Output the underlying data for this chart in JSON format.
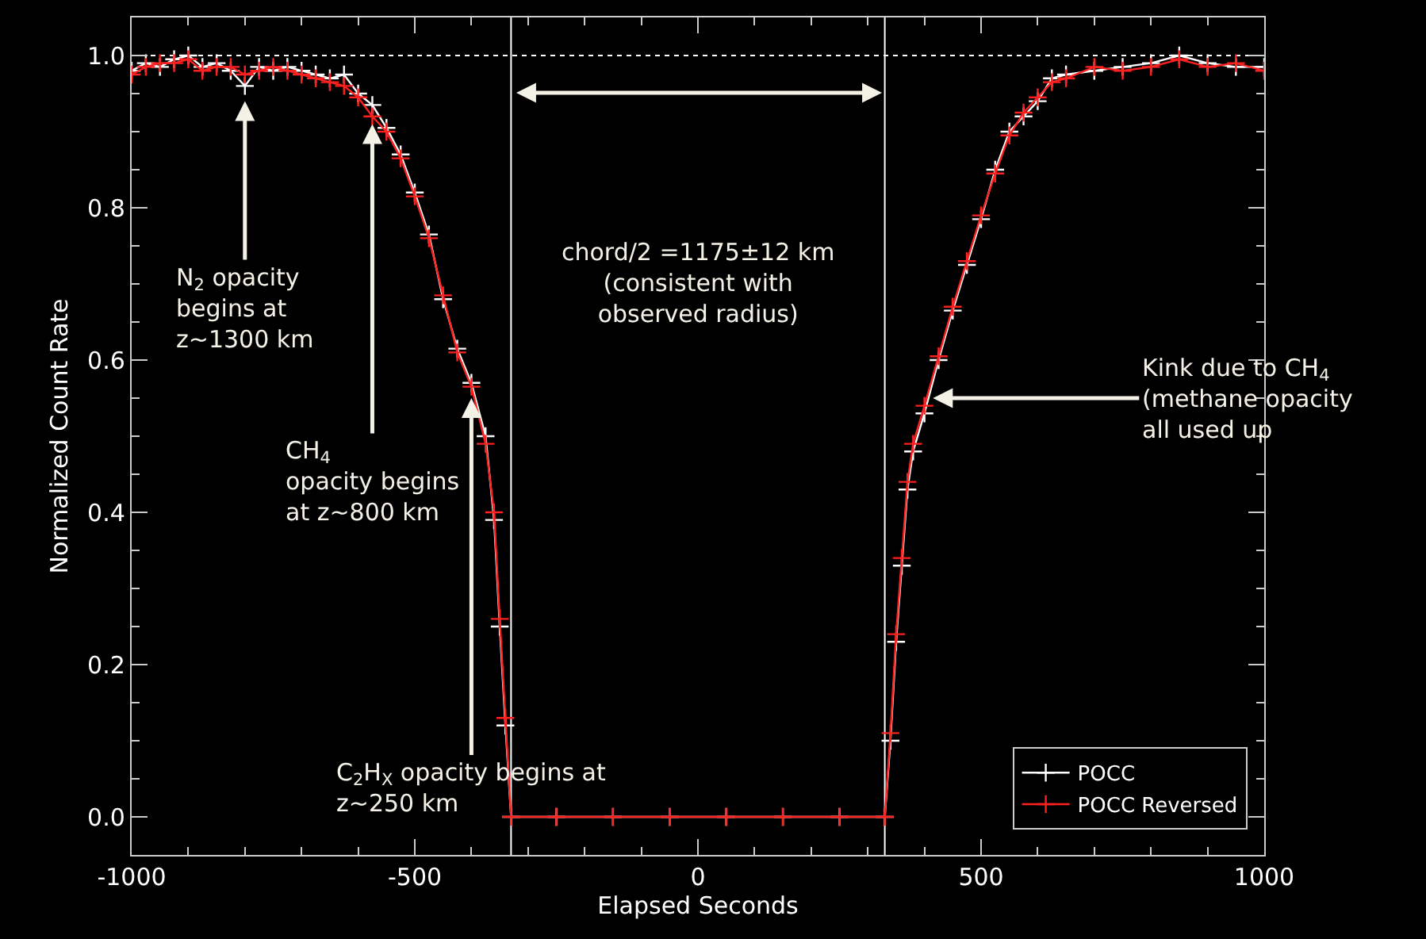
{
  "chart_data": {
    "type": "line",
    "xlabel": "Elapsed Seconds",
    "ylabel": "Normalized Count Rate",
    "x": [
      -1000,
      -975,
      -950,
      -925,
      -900,
      -875,
      -850,
      -825,
      -800,
      -775,
      -750,
      -725,
      -700,
      -675,
      -650,
      -625,
      -600,
      -575,
      -550,
      -525,
      -500,
      -475,
      -450,
      -425,
      -400,
      -375,
      -360,
      -350,
      -340,
      -330,
      -250,
      -150,
      -50,
      50,
      150,
      250,
      330,
      340,
      350,
      360,
      370,
      380,
      400,
      425,
      450,
      475,
      500,
      525,
      550,
      575,
      600,
      625,
      650,
      700,
      750,
      800,
      850,
      900,
      950,
      1000
    ],
    "series": [
      {
        "name": "POCC",
        "color": "#ffffff",
        "values": [
          0.98,
          0.99,
          0.985,
          0.995,
          1.0,
          0.985,
          0.99,
          0.98,
          0.96,
          0.985,
          0.98,
          0.985,
          0.98,
          0.975,
          0.97,
          0.975,
          0.95,
          0.935,
          0.905,
          0.87,
          0.82,
          0.765,
          0.68,
          0.615,
          0.57,
          0.5,
          0.39,
          0.25,
          0.12,
          0.0,
          0.0,
          0.0,
          0.0,
          0.0,
          0.0,
          0.0,
          0.0,
          0.1,
          0.23,
          0.33,
          0.43,
          0.48,
          0.53,
          0.6,
          0.665,
          0.725,
          0.785,
          0.85,
          0.9,
          0.92,
          0.94,
          0.97,
          0.975,
          0.98,
          0.985,
          0.99,
          1.0,
          0.99,
          0.985,
          0.985
        ]
      },
      {
        "name": "POCC Reversed",
        "color": "#ff2020",
        "values": [
          0.975,
          0.985,
          0.99,
          0.99,
          0.995,
          0.98,
          0.985,
          0.985,
          0.975,
          0.98,
          0.985,
          0.98,
          0.975,
          0.97,
          0.965,
          0.96,
          0.945,
          0.92,
          0.9,
          0.865,
          0.815,
          0.76,
          0.685,
          0.61,
          0.565,
          0.49,
          0.4,
          0.26,
          0.13,
          0.0,
          0.0,
          0.0,
          0.0,
          0.0,
          0.0,
          0.0,
          0.0,
          0.11,
          0.24,
          0.34,
          0.44,
          0.49,
          0.54,
          0.605,
          0.67,
          0.73,
          0.79,
          0.845,
          0.895,
          0.925,
          0.945,
          0.965,
          0.97,
          0.985,
          0.98,
          0.985,
          0.995,
          0.985,
          0.99,
          0.98
        ]
      }
    ],
    "xlim": [
      -1000,
      1000
    ],
    "xticks": [
      -1000,
      -500,
      0,
      500,
      1000
    ],
    "ylim": [
      -0.05,
      1.05
    ],
    "yticks": [
      {
        "value": 0,
        "label": "0.0"
      },
      {
        "value": 0.2,
        "label": "0.2"
      },
      {
        "value": 0.4,
        "label": "0.4"
      },
      {
        "value": 0.6,
        "label": "0.6"
      },
      {
        "value": 0.8,
        "label": "0.8"
      },
      {
        "value": 1.0,
        "label": "1.0"
      }
    ],
    "ref_lines": [
      {
        "axis": "y",
        "value": 1.0,
        "color": "#ffffff",
        "line_style": "dotted"
      },
      {
        "axis": "x",
        "value": -330,
        "color": "#ffffff",
        "line_style": "solid"
      },
      {
        "axis": "x",
        "value": 330,
        "color": "#ffffff",
        "line_style": "solid"
      }
    ],
    "annotations": [
      {
        "text": "N$_{2}$ opacity\nbegins at\nz~1300 km",
        "x": -800,
        "y": 0.94
      },
      {
        "text": "CH$_{4}$\nopacity begins\nat z~800 km",
        "x": -575,
        "y": 0.91
      },
      {
        "text": "C$_{2}$H$_{X}$ opacity begins at\nz~250 km",
        "x": -400,
        "y": 0.55
      },
      {
        "text": "Kink due to CH$_{4}$\n(methane opacity\nall used up",
        "x": 415,
        "y": 0.55
      },
      "chord/2 =1175±12 km\n(consistent with\nobserved radius)"
    ],
    "marker": "cross",
    "line_style": "solid",
    "legend": "bottom right",
    "grid": false
  }
}
